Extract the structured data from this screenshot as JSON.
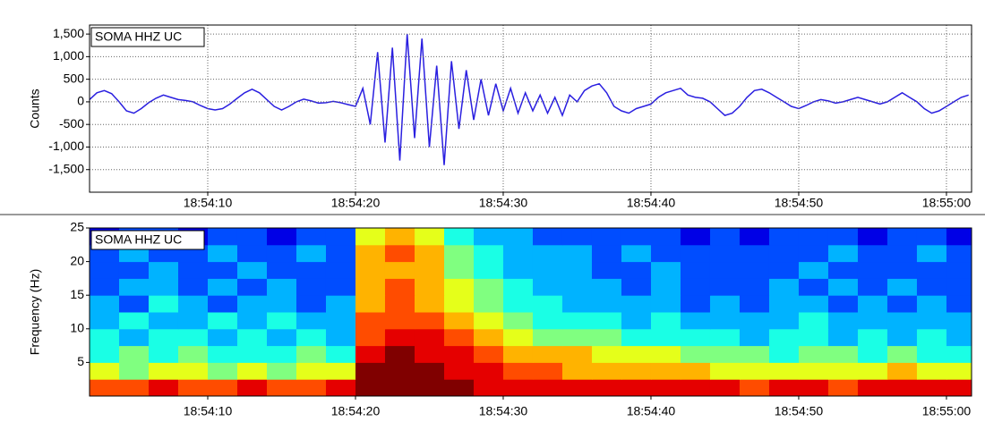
{
  "chart_data": [
    {
      "type": "line",
      "title": "SOMA HHZ UC",
      "ylabel": "Counts",
      "color": "#2a1fe0",
      "grid": true,
      "xlim": [
        2,
        61.7
      ],
      "ylim": [
        -2000,
        1700
      ],
      "xticks": [
        {
          "value": 10,
          "label": "18:54:10"
        },
        {
          "value": 20,
          "label": "18:54:20"
        },
        {
          "value": 30,
          "label": "18:54:30"
        },
        {
          "value": 40,
          "label": "18:54:40"
        },
        {
          "value": 50,
          "label": "18:54:50"
        },
        {
          "value": 60,
          "label": "18:55:00"
        }
      ],
      "yticks": [
        {
          "value": 1500,
          "label": "1,500"
        },
        {
          "value": 1000,
          "label": "1,000"
        },
        500,
        0,
        -500,
        {
          "value": -1000,
          "label": "-1,000"
        },
        {
          "value": -1500,
          "label": "-1,500"
        }
      ],
      "x": [
        2,
        2.5,
        3,
        3.5,
        4,
        4.5,
        5,
        5.5,
        6,
        6.5,
        7,
        7.5,
        8,
        8.5,
        9,
        9.5,
        10,
        10.5,
        11,
        11.5,
        12,
        12.5,
        13,
        13.5,
        14,
        14.5,
        15,
        15.5,
        16,
        16.5,
        17,
        17.5,
        18,
        18.5,
        19,
        19.5,
        20,
        20.5,
        21,
        21.5,
        22,
        22.5,
        23,
        23.5,
        24,
        24.5,
        25,
        25.5,
        26,
        26.5,
        27,
        27.5,
        28,
        28.5,
        29,
        29.5,
        30,
        30.5,
        31,
        31.5,
        32,
        32.5,
        33,
        33.5,
        34,
        34.5,
        35,
        35.5,
        36,
        36.5,
        37,
        37.5,
        38,
        38.5,
        39,
        39.5,
        40,
        40.5,
        41,
        41.5,
        42,
        42.5,
        43,
        43.5,
        44,
        44.5,
        45,
        45.5,
        46,
        46.5,
        47,
        47.5,
        48,
        48.5,
        49,
        49.5,
        50,
        50.5,
        51,
        51.5,
        52,
        52.5,
        53,
        53.5,
        54,
        54.5,
        55,
        55.5,
        56,
        56.5,
        57,
        57.5,
        58,
        58.5,
        59,
        59.5,
        60,
        60.5,
        61,
        61.5
      ],
      "values": [
        50,
        200,
        250,
        180,
        0,
        -200,
        -250,
        -150,
        -20,
        80,
        150,
        100,
        50,
        30,
        0,
        -80,
        -150,
        -180,
        -150,
        -50,
        80,
        200,
        280,
        200,
        50,
        -100,
        -180,
        -100,
        0,
        60,
        20,
        -30,
        -20,
        10,
        -20,
        -60,
        -100,
        300,
        -500,
        1100,
        -900,
        1200,
        -1300,
        1500,
        -800,
        1400,
        -1000,
        800,
        -1400,
        900,
        -600,
        700,
        -400,
        500,
        -300,
        400,
        -200,
        300,
        -250,
        200,
        -200,
        150,
        -250,
        100,
        -300,
        150,
        0,
        250,
        350,
        400,
        200,
        -100,
        -200,
        -250,
        -150,
        -100,
        -50,
        100,
        200,
        250,
        300,
        150,
        100,
        80,
        0,
        -150,
        -300,
        -250,
        -100,
        100,
        250,
        280,
        200,
        100,
        0,
        -100,
        -150,
        -80,
        0,
        50,
        20,
        -30,
        0,
        50,
        100,
        50,
        0,
        -50,
        0,
        100,
        200,
        100,
        0,
        -150,
        -250,
        -200,
        -100,
        0,
        100,
        150
      ]
    },
    {
      "type": "heatmap",
      "title": "SOMA HHZ UC",
      "ylabel": "Frequency (Hz)",
      "colormap": "jet",
      "zlim": [
        0,
        10
      ],
      "xlim": [
        2,
        61.7
      ],
      "ylim": [
        0,
        25
      ],
      "xticks": [
        {
          "value": 10,
          "label": "18:54:10"
        },
        {
          "value": 20,
          "label": "18:54:20"
        },
        {
          "value": 30,
          "label": "18:54:30"
        },
        {
          "value": 40,
          "label": "18:54:40"
        },
        {
          "value": 50,
          "label": "18:54:50"
        },
        {
          "value": 60,
          "label": "18:55:00"
        }
      ],
      "yticks": [
        5,
        10,
        15,
        20,
        25
      ],
      "time_bins": [
        2,
        4,
        6,
        8,
        10,
        12,
        14,
        16,
        18,
        20,
        22,
        24,
        26,
        28,
        30,
        32,
        34,
        36,
        38,
        40,
        42,
        44,
        46,
        48,
        50,
        52,
        54,
        56,
        58,
        60,
        62
      ],
      "freq_bins": [
        0,
        2.5,
        5,
        7.5,
        10,
        12.5,
        15,
        17.5,
        20,
        22.5,
        25
      ],
      "power": [
        [
          8,
          8,
          9,
          8,
          8,
          9,
          8,
          8,
          9,
          10,
          10,
          10,
          10,
          9,
          9,
          9,
          9,
          9,
          9,
          9,
          9,
          9,
          8,
          9,
          9,
          8,
          9,
          9,
          9,
          9
        ],
        [
          6,
          5,
          6,
          6,
          5,
          6,
          5,
          6,
          6,
          10,
          10,
          10,
          9,
          9,
          8,
          8,
          7,
          7,
          7,
          7,
          7,
          6,
          6,
          6,
          6,
          6,
          6,
          7,
          6,
          6
        ],
        [
          4,
          5,
          4,
          5,
          4,
          4,
          4,
          5,
          4,
          9,
          10,
          9,
          9,
          8,
          7,
          7,
          7,
          6,
          6,
          6,
          5,
          5,
          5,
          4,
          5,
          5,
          4,
          5,
          4,
          4
        ],
        [
          4,
          3,
          4,
          4,
          3,
          4,
          3,
          4,
          3,
          8,
          9,
          9,
          8,
          7,
          6,
          5,
          5,
          5,
          4,
          4,
          4,
          4,
          3,
          4,
          4,
          3,
          4,
          3,
          4,
          3
        ],
        [
          3,
          4,
          3,
          3,
          4,
          3,
          4,
          3,
          3,
          8,
          8,
          8,
          7,
          6,
          5,
          4,
          4,
          4,
          3,
          4,
          3,
          3,
          3,
          3,
          4,
          3,
          3,
          3,
          3,
          3
        ],
        [
          3,
          2,
          4,
          3,
          2,
          3,
          3,
          2,
          3,
          7,
          8,
          7,
          6,
          5,
          4,
          4,
          3,
          3,
          3,
          3,
          2,
          3,
          2,
          3,
          3,
          2,
          3,
          2,
          3,
          2
        ],
        [
          2,
          3,
          3,
          2,
          3,
          2,
          3,
          2,
          2,
          7,
          8,
          7,
          6,
          5,
          4,
          3,
          3,
          3,
          2,
          3,
          2,
          2,
          2,
          3,
          2,
          3,
          2,
          3,
          2,
          2
        ],
        [
          2,
          2,
          3,
          2,
          2,
          3,
          2,
          2,
          2,
          7,
          7,
          7,
          5,
          4,
          3,
          3,
          3,
          2,
          2,
          3,
          2,
          2,
          2,
          2,
          3,
          2,
          2,
          2,
          2,
          2
        ],
        [
          2,
          3,
          2,
          2,
          3,
          2,
          2,
          3,
          2,
          7,
          8,
          7,
          5,
          4,
          3,
          3,
          3,
          2,
          3,
          2,
          2,
          2,
          2,
          2,
          2,
          3,
          2,
          2,
          3,
          2
        ],
        [
          1,
          2,
          2,
          1,
          2,
          2,
          1,
          2,
          2,
          6,
          7,
          6,
          4,
          3,
          3,
          2,
          2,
          2,
          2,
          2,
          1,
          2,
          1,
          2,
          2,
          2,
          1,
          2,
          2,
          1
        ]
      ]
    }
  ]
}
